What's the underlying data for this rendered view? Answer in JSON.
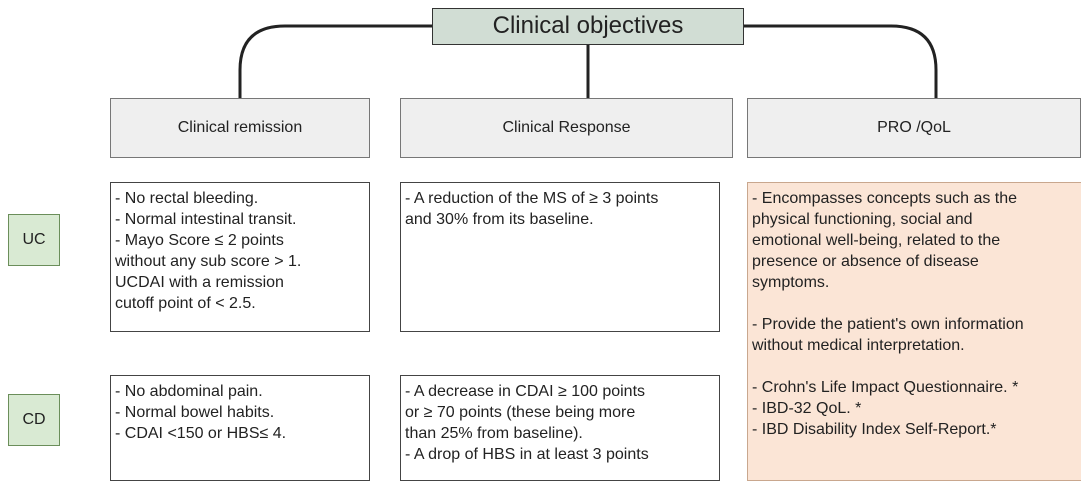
{
  "title": "Clinical objectives",
  "rows": [
    "UC",
    "CD"
  ],
  "columns": [
    {
      "header": "Clinical remission",
      "uc": [
        "- No rectal bleeding.",
        "- Normal intestinal transit.",
        "- Mayo Score ≤ 2 points",
        "without any sub score > 1.",
        "UCDAI with a remission",
        "cutoff point of < 2.5."
      ],
      "cd": [
        "- No abdominal pain.",
        "- Normal bowel habits.",
        "- CDAI <150 or HBS≤ 4."
      ]
    },
    {
      "header": "Clinical Response",
      "uc": [
        "- A reduction of the MS of ≥ 3 points",
        "and 30% from its baseline."
      ],
      "cd": [
        "- A decrease in CDAI ≥ 100 points",
        "or ≥ 70 points (these being more",
        "than 25% from baseline).",
        "- A drop of HBS in at least 3 points"
      ]
    },
    {
      "header": "PRO /QoL",
      "paragraphs": [
        [
          "- Encompasses concepts such as the",
          "physical functioning, social and",
          "emotional well-being, related to the",
          "presence or absence of disease",
          "symptoms."
        ],
        [
          "- Provide the patient's own information",
          "without medical interpretation."
        ],
        [
          "- Crohn's Life Impact Questionnaire. *",
          "- IBD-32 QoL. *",
          "- IBD Disability Index Self-Report.*"
        ]
      ]
    }
  ]
}
